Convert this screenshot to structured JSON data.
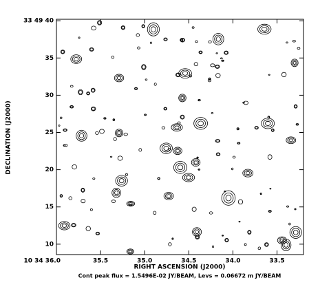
{
  "chart_data": {
    "type": "contour",
    "x_label": "RIGHT ASCENSION (J2000)",
    "y_label": "DECLINATION (J2000)",
    "caption": "Cont peak flux =  1.5496E-02 JY/BEAM, Levs = 0.06672 m JY/BEAM",
    "xlim": [
      36.0,
      33.2
    ],
    "xticks": [
      {
        "value": 36.0,
        "label": "10 34 36.0"
      },
      35.5,
      {
        "value": 35.0,
        "label": "35.0"
      },
      34.5,
      {
        "value": 34.0,
        "label": "34.0"
      },
      33.5
    ],
    "ylim": [
      8.6,
      40.2
    ],
    "yticks": [
      {
        "value": 40,
        "label": "33 49 40"
      },
      35,
      30,
      25,
      20,
      15,
      10
    ],
    "color": "#000000"
  }
}
